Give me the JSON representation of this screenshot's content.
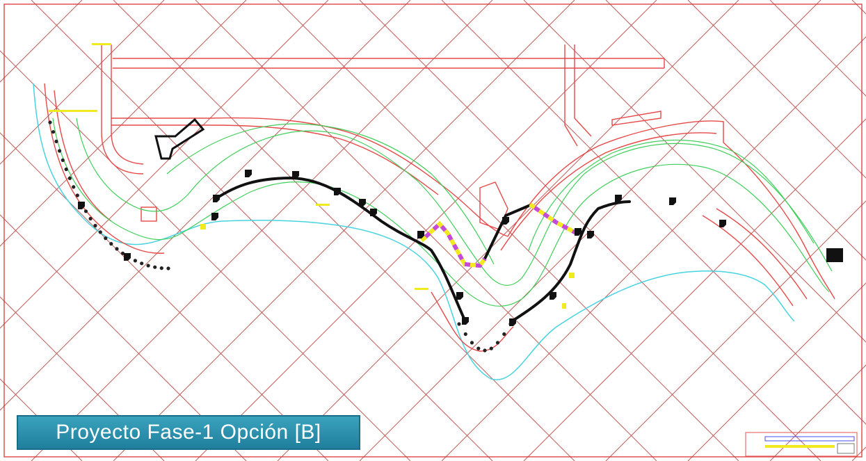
{
  "caption": {
    "text": "Proyecto Fase-1 Opción [B]"
  },
  "colors": {
    "grid": "#b0423f",
    "roads": "#e74848",
    "lots": "#3fcf5a",
    "shoreline": "#47d3e0",
    "cable": "#111111",
    "dash_a": "#f1ea1e",
    "dash_b": "#c64ad8",
    "caption_bg": "#2a90ad"
  },
  "icons": [
    "transformer-icon",
    "title-block-icon"
  ]
}
